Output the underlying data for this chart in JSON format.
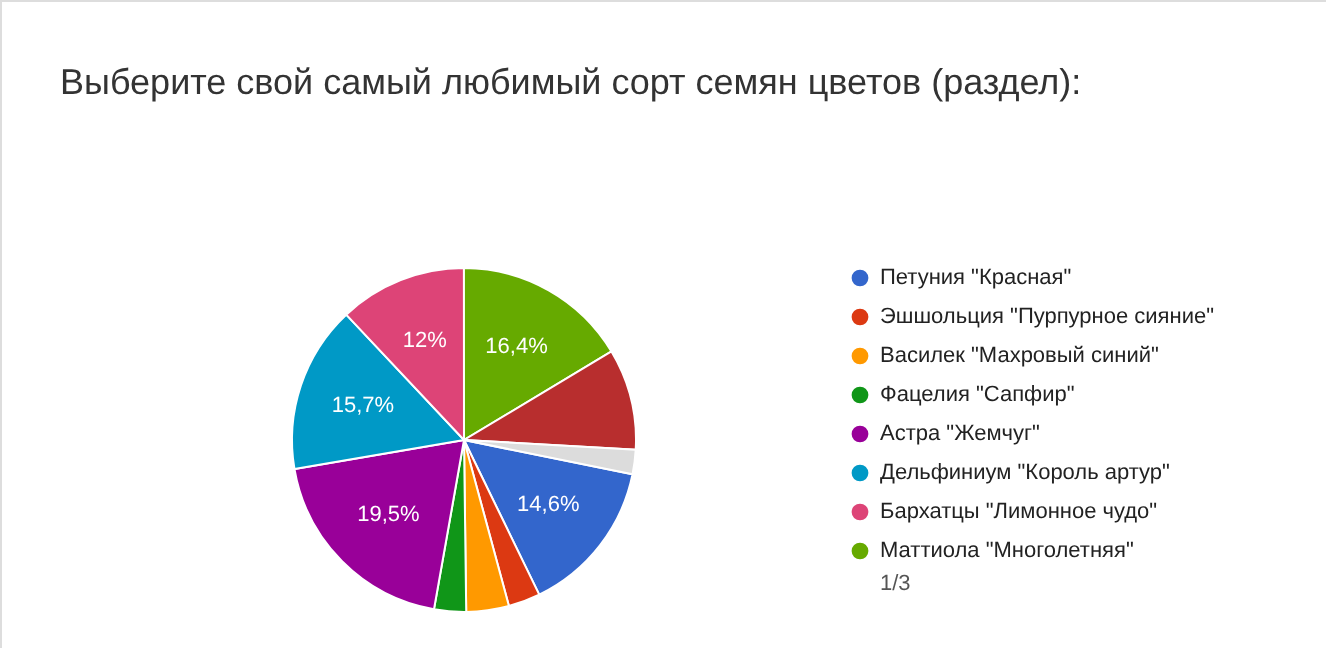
{
  "chart_data": {
    "type": "pie",
    "title": "Выберите свой самый любимый сорт семян цветов (раздел):",
    "categories": [
      "Петуния \"Красная\"",
      "Эшшольция \"Пурпурное сияние\"",
      "Василек \"Махровый синий\"",
      "Фацелия \"Сапфир\"",
      "Астра \"Жемчуг\"",
      "Дельфиниум \"Король артур\"",
      "Бархатцы \"Лимонное чудо\"",
      "Маттиола \"Многолетняя\"",
      null,
      null
    ],
    "values": [
      14.6,
      3,
      4,
      3,
      19.5,
      15.7,
      12,
      16.4,
      9.5,
      2.3
    ],
    "value_labels": [
      "14,6%",
      null,
      null,
      null,
      "19,5%",
      "15,7%",
      "12%",
      "16,4%",
      null,
      null
    ],
    "colors": [
      "#3366cc",
      "#dc3912",
      "#ff9900",
      "#109618",
      "#990099",
      "#0099c6",
      "#dd4477",
      "#66aa00",
      "#b82e2e",
      "#dcdcdc"
    ],
    "legend": "right",
    "annotations": [
      "1/3"
    ]
  }
}
